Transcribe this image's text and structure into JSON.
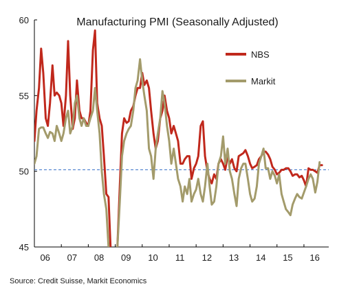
{
  "chart_data": {
    "type": "line",
    "title": "Manufacturing PMI (Seasonally Adjusted)",
    "xlabel": "",
    "ylabel": "",
    "xlim": [
      2006.0,
      2016.92
    ],
    "ylim": [
      45,
      60
    ],
    "yticks": [
      45,
      50,
      55,
      60
    ],
    "xtick_labels": [
      "06",
      "07",
      "08",
      "09",
      "10",
      "11",
      "12",
      "13",
      "14",
      "15",
      "16"
    ],
    "reference_line": 50.1,
    "grid": false,
    "legend_position": "top-right",
    "series": [
      {
        "name": "NBS",
        "color": "#c0281c",
        "points": [
          [
            2006.0,
            52.0
          ],
          [
            2006.08,
            54.0
          ],
          [
            2006.17,
            55.5
          ],
          [
            2006.25,
            58.1
          ],
          [
            2006.33,
            56.5
          ],
          [
            2006.42,
            53.5
          ],
          [
            2006.5,
            53.0
          ],
          [
            2006.58,
            54.5
          ],
          [
            2006.67,
            57.0
          ],
          [
            2006.75,
            55.0
          ],
          [
            2006.83,
            55.2
          ],
          [
            2006.92,
            55.0
          ],
          [
            2007.0,
            54.5
          ],
          [
            2007.08,
            53.0
          ],
          [
            2007.17,
            55.0
          ],
          [
            2007.25,
            58.6
          ],
          [
            2007.33,
            55.0
          ],
          [
            2007.42,
            52.8
          ],
          [
            2007.5,
            53.5
          ],
          [
            2007.58,
            56.0
          ],
          [
            2007.67,
            54.0
          ],
          [
            2007.75,
            53.5
          ],
          [
            2007.83,
            53.5
          ],
          [
            2007.92,
            53.2
          ],
          [
            2008.0,
            53.0
          ],
          [
            2008.08,
            54.0
          ],
          [
            2008.17,
            58.0
          ],
          [
            2008.25,
            59.3
          ],
          [
            2008.33,
            54.5
          ],
          [
            2008.42,
            53.5
          ],
          [
            2008.5,
            53.0
          ],
          [
            2008.58,
            51.0
          ],
          [
            2008.67,
            48.5
          ],
          [
            2008.75,
            48.3
          ],
          [
            2008.83,
            44.8
          ],
          [
            2008.92,
            41.2
          ],
          [
            2009.0,
            42.0
          ],
          [
            2009.08,
            45.0
          ],
          [
            2009.17,
            49.0
          ],
          [
            2009.25,
            52.5
          ],
          [
            2009.33,
            53.5
          ],
          [
            2009.42,
            53.2
          ],
          [
            2009.5,
            53.3
          ],
          [
            2009.58,
            54.0
          ],
          [
            2009.67,
            54.3
          ],
          [
            2009.75,
            55.0
          ],
          [
            2009.83,
            55.5
          ],
          [
            2009.92,
            55.5
          ],
          [
            2010.0,
            56.5
          ],
          [
            2010.08,
            55.7
          ],
          [
            2010.17,
            56.0
          ],
          [
            2010.25,
            55.5
          ],
          [
            2010.33,
            54.0
          ],
          [
            2010.42,
            52.5
          ],
          [
            2010.5,
            51.5
          ],
          [
            2010.58,
            52.0
          ],
          [
            2010.67,
            53.5
          ],
          [
            2010.75,
            54.0
          ],
          [
            2010.83,
            55.0
          ],
          [
            2010.92,
            54.0
          ],
          [
            2011.0,
            53.5
          ],
          [
            2011.08,
            52.5
          ],
          [
            2011.17,
            53.0
          ],
          [
            2011.25,
            52.5
          ],
          [
            2011.33,
            52.0
          ],
          [
            2011.42,
            50.5
          ],
          [
            2011.5,
            50.5
          ],
          [
            2011.58,
            50.8
          ],
          [
            2011.67,
            51.0
          ],
          [
            2011.75,
            51.0
          ],
          [
            2011.83,
            49.5
          ],
          [
            2011.92,
            50.2
          ],
          [
            2012.0,
            50.5
          ],
          [
            2012.08,
            51.0
          ],
          [
            2012.17,
            53.0
          ],
          [
            2012.25,
            53.3
          ],
          [
            2012.33,
            51.0
          ],
          [
            2012.42,
            50.0
          ],
          [
            2012.5,
            49.5
          ],
          [
            2012.58,
            49.2
          ],
          [
            2012.67,
            49.8
          ],
          [
            2012.75,
            49.5
          ],
          [
            2012.83,
            50.5
          ],
          [
            2012.92,
            50.8
          ],
          [
            2013.0,
            50.5
          ],
          [
            2013.08,
            50.1
          ],
          [
            2013.17,
            51.0
          ],
          [
            2013.25,
            50.5
          ],
          [
            2013.33,
            50.8
          ],
          [
            2013.42,
            50.2
          ],
          [
            2013.5,
            50.0
          ],
          [
            2013.58,
            51.0
          ],
          [
            2013.67,
            51.1
          ],
          [
            2013.75,
            51.2
          ],
          [
            2013.83,
            51.4
          ],
          [
            2013.92,
            51.0
          ],
          [
            2014.0,
            50.5
          ],
          [
            2014.08,
            50.2
          ],
          [
            2014.17,
            50.3
          ],
          [
            2014.25,
            50.4
          ],
          [
            2014.33,
            50.8
          ],
          [
            2014.42,
            51.0
          ],
          [
            2014.5,
            51.3
          ],
          [
            2014.58,
            51.3
          ],
          [
            2014.67,
            51.1
          ],
          [
            2014.75,
            50.8
          ],
          [
            2014.83,
            50.3
          ],
          [
            2014.92,
            50.1
          ],
          [
            2015.0,
            49.8
          ],
          [
            2015.08,
            49.9
          ],
          [
            2015.17,
            50.1
          ],
          [
            2015.25,
            50.1
          ],
          [
            2015.33,
            50.2
          ],
          [
            2015.42,
            50.2
          ],
          [
            2015.5,
            50.0
          ],
          [
            2015.58,
            49.7
          ],
          [
            2015.67,
            49.8
          ],
          [
            2015.75,
            49.8
          ],
          [
            2015.83,
            49.6
          ],
          [
            2015.92,
            49.7
          ],
          [
            2016.0,
            49.4
          ],
          [
            2016.08,
            49.0
          ],
          [
            2016.17,
            50.2
          ],
          [
            2016.25,
            50.1
          ],
          [
            2016.33,
            50.1
          ],
          [
            2016.42,
            50.0
          ],
          [
            2016.5,
            49.9
          ],
          [
            2016.58,
            50.4
          ],
          [
            2016.67,
            50.4
          ]
        ]
      },
      {
        "name": "Markit",
        "color": "#a39b6b",
        "points": [
          [
            2006.0,
            50.5
          ],
          [
            2006.08,
            51.0
          ],
          [
            2006.17,
            52.8
          ],
          [
            2006.25,
            52.9
          ],
          [
            2006.33,
            52.9
          ],
          [
            2006.42,
            52.5
          ],
          [
            2006.5,
            52.2
          ],
          [
            2006.58,
            52.6
          ],
          [
            2006.67,
            52.5
          ],
          [
            2006.75,
            52.0
          ],
          [
            2006.83,
            53.0
          ],
          [
            2006.92,
            52.5
          ],
          [
            2007.0,
            52.0
          ],
          [
            2007.08,
            52.5
          ],
          [
            2007.17,
            53.5
          ],
          [
            2007.25,
            54.0
          ],
          [
            2007.33,
            52.5
          ],
          [
            2007.42,
            53.0
          ],
          [
            2007.5,
            54.5
          ],
          [
            2007.58,
            55.0
          ],
          [
            2007.67,
            53.5
          ],
          [
            2007.75,
            53.0
          ],
          [
            2007.83,
            53.5
          ],
          [
            2007.92,
            53.0
          ],
          [
            2008.0,
            53.0
          ],
          [
            2008.08,
            53.5
          ],
          [
            2008.17,
            54.0
          ],
          [
            2008.25,
            55.5
          ],
          [
            2008.33,
            54.0
          ],
          [
            2008.42,
            52.5
          ],
          [
            2008.5,
            50.0
          ],
          [
            2008.58,
            48.5
          ],
          [
            2008.67,
            47.5
          ],
          [
            2008.75,
            45.0
          ],
          [
            2008.83,
            43.0
          ],
          [
            2008.92,
            41.0
          ],
          [
            2009.0,
            42.5
          ],
          [
            2009.08,
            45.0
          ],
          [
            2009.17,
            48.0
          ],
          [
            2009.25,
            51.0
          ],
          [
            2009.33,
            52.0
          ],
          [
            2009.42,
            52.5
          ],
          [
            2009.5,
            52.8
          ],
          [
            2009.58,
            53.0
          ],
          [
            2009.67,
            54.0
          ],
          [
            2009.75,
            55.5
          ],
          [
            2009.83,
            56.0
          ],
          [
            2009.92,
            57.4
          ],
          [
            2010.0,
            56.0
          ],
          [
            2010.08,
            55.0
          ],
          [
            2010.17,
            54.0
          ],
          [
            2010.25,
            51.5
          ],
          [
            2010.33,
            51.0
          ],
          [
            2010.42,
            49.5
          ],
          [
            2010.5,
            51.5
          ],
          [
            2010.58,
            52.5
          ],
          [
            2010.67,
            53.5
          ],
          [
            2010.75,
            55.3
          ],
          [
            2010.83,
            54.5
          ],
          [
            2010.92,
            53.0
          ],
          [
            2011.0,
            52.0
          ],
          [
            2011.08,
            50.5
          ],
          [
            2011.17,
            51.5
          ],
          [
            2011.25,
            50.5
          ],
          [
            2011.33,
            49.5
          ],
          [
            2011.42,
            49.0
          ],
          [
            2011.5,
            48.0
          ],
          [
            2011.58,
            49.0
          ],
          [
            2011.67,
            48.5
          ],
          [
            2011.75,
            49.5
          ],
          [
            2011.83,
            48.0
          ],
          [
            2011.92,
            48.5
          ],
          [
            2012.0,
            48.8
          ],
          [
            2012.08,
            49.5
          ],
          [
            2012.17,
            48.5
          ],
          [
            2012.25,
            48.0
          ],
          [
            2012.33,
            49.0
          ],
          [
            2012.42,
            50.5
          ],
          [
            2012.5,
            49.0
          ],
          [
            2012.58,
            47.8
          ],
          [
            2012.67,
            48.0
          ],
          [
            2012.75,
            49.0
          ],
          [
            2012.83,
            50.5
          ],
          [
            2012.92,
            51.0
          ],
          [
            2013.0,
            52.3
          ],
          [
            2013.08,
            50.5
          ],
          [
            2013.17,
            51.5
          ],
          [
            2013.25,
            50.0
          ],
          [
            2013.33,
            49.5
          ],
          [
            2013.42,
            48.5
          ],
          [
            2013.5,
            47.7
          ],
          [
            2013.58,
            49.5
          ],
          [
            2013.67,
            50.2
          ],
          [
            2013.75,
            50.5
          ],
          [
            2013.83,
            50.5
          ],
          [
            2013.92,
            49.5
          ],
          [
            2014.0,
            48.5
          ],
          [
            2014.08,
            48.0
          ],
          [
            2014.17,
            48.2
          ],
          [
            2014.25,
            49.0
          ],
          [
            2014.33,
            50.5
          ],
          [
            2014.42,
            51.0
          ],
          [
            2014.5,
            51.5
          ],
          [
            2014.58,
            50.2
          ],
          [
            2014.67,
            50.2
          ],
          [
            2014.75,
            49.5
          ],
          [
            2014.83,
            50.0
          ],
          [
            2014.92,
            49.7
          ],
          [
            2015.0,
            49.2
          ],
          [
            2015.08,
            49.8
          ],
          [
            2015.17,
            48.5
          ],
          [
            2015.25,
            48.0
          ],
          [
            2015.33,
            47.5
          ],
          [
            2015.42,
            47.3
          ],
          [
            2015.5,
            47.1
          ],
          [
            2015.58,
            47.8
          ],
          [
            2015.67,
            48.2
          ],
          [
            2015.75,
            48.5
          ],
          [
            2015.83,
            48.3
          ],
          [
            2015.92,
            48.2
          ],
          [
            2016.0,
            48.6
          ],
          [
            2016.08,
            49.0
          ],
          [
            2016.17,
            49.5
          ],
          [
            2016.25,
            49.8
          ],
          [
            2016.33,
            49.5
          ],
          [
            2016.42,
            48.6
          ],
          [
            2016.5,
            49.3
          ],
          [
            2016.58,
            50.6
          ]
        ]
      }
    ],
    "source": "Source: Credit Suisse, Markit Economics"
  }
}
